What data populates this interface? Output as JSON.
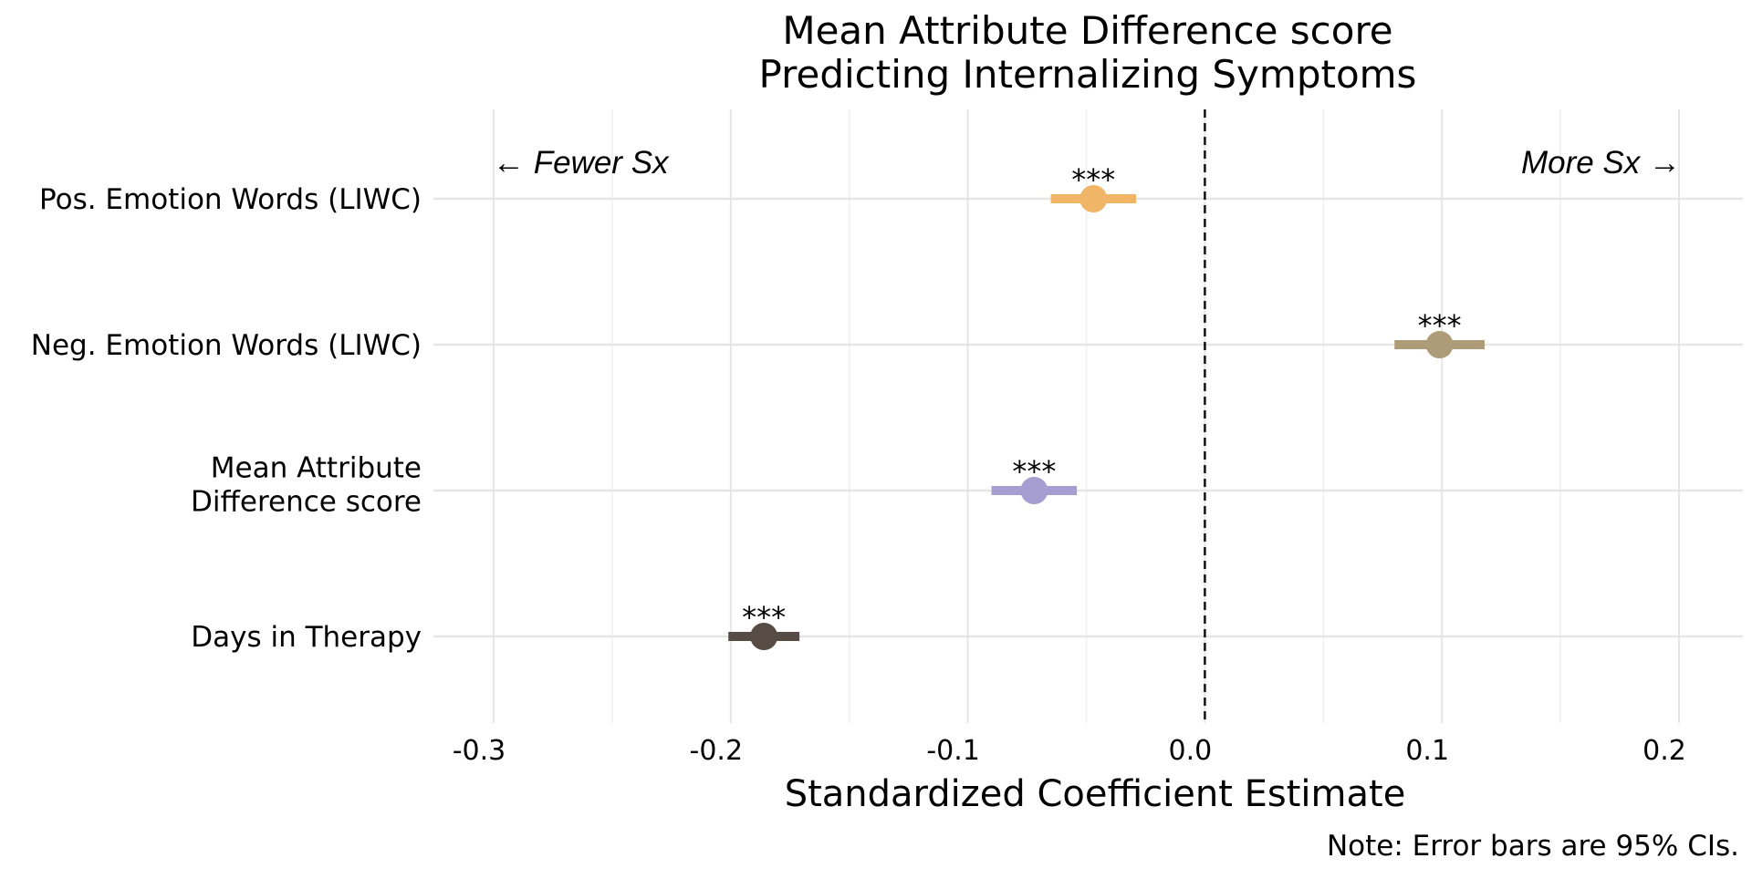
{
  "chart_data": {
    "type": "forest",
    "title_lines": [
      "Mean Attribute Difference score",
      "Predicting Internalizing Symptoms"
    ],
    "xlabel": "Standardized Coefficient Estimate",
    "note": "Note: Error bars are 95% CIs.",
    "direction_labels": {
      "left": "← Fewer Sx",
      "right": "More Sx →"
    },
    "xlim": [
      -0.3,
      0.2
    ],
    "x_ticks": [
      -0.3,
      -0.2,
      -0.1,
      0.0,
      0.1,
      0.2
    ],
    "x_tick_labels": [
      "-0.3",
      "-0.2",
      "-0.1",
      "0.0",
      "0.1",
      "0.2"
    ],
    "reference_line": 0.0,
    "grid": true,
    "rows": [
      {
        "label_lines": [
          "Pos. Emotion Words (LIWC)"
        ],
        "estimate": -0.047,
        "ci": [
          -0.065,
          -0.029
        ],
        "sig": "***",
        "color": "#F0B567"
      },
      {
        "label_lines": [
          "Neg. Emotion Words (LIWC)"
        ],
        "estimate": 0.099,
        "ci": [
          0.08,
          0.118
        ],
        "sig": "***",
        "color": "#AD9C77"
      },
      {
        "label_lines": [
          "Mean Attribute",
          "Difference score"
        ],
        "estimate": -0.072,
        "ci": [
          -0.09,
          -0.054
        ],
        "sig": "***",
        "color": "#A69ED1"
      },
      {
        "label_lines": [
          "Days in Therapy"
        ],
        "estimate": -0.186,
        "ci": [
          -0.201,
          -0.171
        ],
        "sig": "***",
        "color": "#564C45"
      }
    ]
  }
}
